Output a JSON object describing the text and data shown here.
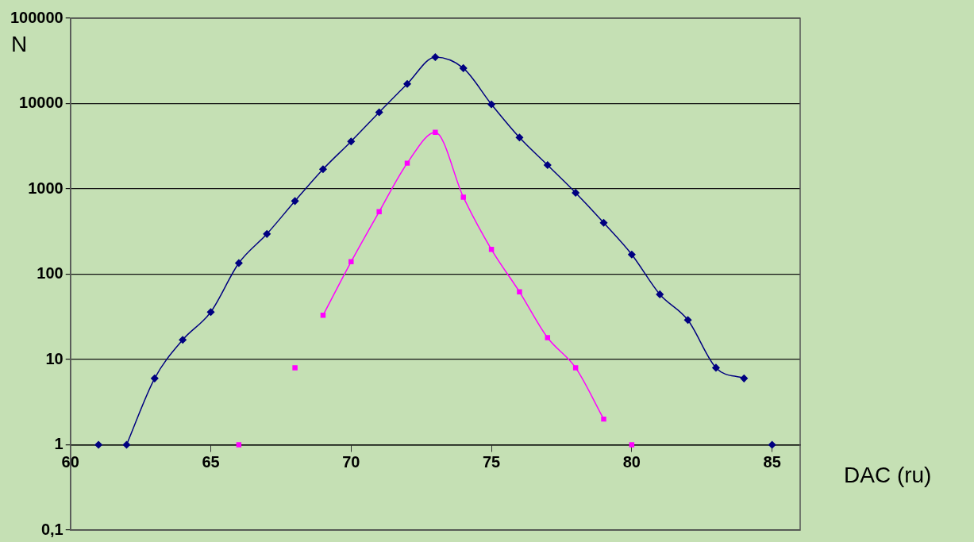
{
  "chart_data": {
    "type": "line",
    "xlabel": "DAC (ru)",
    "ylabel": "N",
    "log": "y",
    "grid": "y",
    "xlim": [
      60,
      86
    ],
    "xticks": [
      60,
      65,
      70,
      75,
      80,
      85
    ],
    "ylim": [
      0.1,
      100000
    ],
    "yticks": [
      {
        "value": 0.1,
        "label": "0,1"
      },
      1,
      10,
      100,
      1000,
      10000,
      100000
    ],
    "series": [
      {
        "type": "line",
        "color": "#000080",
        "marker": "diamond",
        "x": [
          62,
          63,
          64,
          65,
          66,
          67,
          68,
          69,
          70,
          71,
          72,
          73,
          74,
          75,
          76,
          77,
          78,
          79,
          80,
          81,
          82,
          83,
          84
        ],
        "values": [
          1,
          6,
          17,
          36,
          135,
          296,
          720,
          1700,
          3600,
          7900,
          17000,
          35000,
          26000,
          9800,
          4000,
          1900,
          900,
          400,
          170,
          58,
          29,
          8,
          6
        ]
      },
      {
        "type": "scatter",
        "color": "#000080",
        "marker": "diamond",
        "x": [
          61,
          85
        ],
        "values": [
          1,
          1
        ]
      },
      {
        "type": "line",
        "color": "#ff00ff",
        "marker": "square",
        "x": [
          69,
          70,
          71,
          72,
          73,
          74,
          75,
          76,
          77,
          78,
          79
        ],
        "values": [
          33,
          140,
          540,
          2000,
          4600,
          800,
          195,
          62,
          18,
          8,
          2
        ]
      },
      {
        "type": "scatter",
        "color": "#ff00ff",
        "marker": "square",
        "x": [
          66,
          68,
          80
        ],
        "values": [
          1,
          8,
          1
        ]
      }
    ]
  }
}
